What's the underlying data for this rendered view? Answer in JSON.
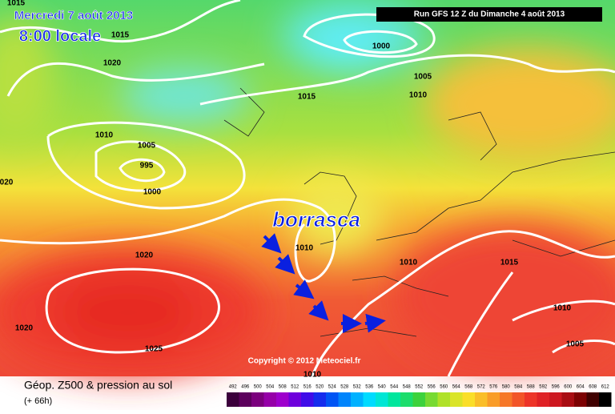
{
  "header": {
    "date": "Mercredi 7 août 2013",
    "time": "8:00 locale",
    "run": "Run GFS 12 Z du Dimanche 4 août 2013"
  },
  "map": {
    "annotation": "borrasca",
    "copyright": "Copyright © 2012 Meteociel.fr",
    "isobar_labels": [
      "1015",
      "1015",
      "1020",
      "1010",
      "1005",
      "995",
      "1000",
      "1000",
      "1005",
      "1010",
      "1015",
      "020",
      "1020",
      "1010",
      "1010",
      "1015",
      "1020",
      "1025",
      "1010",
      "1005",
      "1010"
    ]
  },
  "legend": {
    "title": "Géop. Z500 & pression au sol",
    "lead": "(+ 66h)",
    "scale": [
      "492",
      "496",
      "500",
      "504",
      "508",
      "512",
      "516",
      "520",
      "524",
      "528",
      "532",
      "536",
      "540",
      "544",
      "548",
      "552",
      "556",
      "560",
      "564",
      "568",
      "572",
      "576",
      "580",
      "584",
      "588",
      "592",
      "596",
      "600",
      "604",
      "608",
      "612"
    ]
  }
}
